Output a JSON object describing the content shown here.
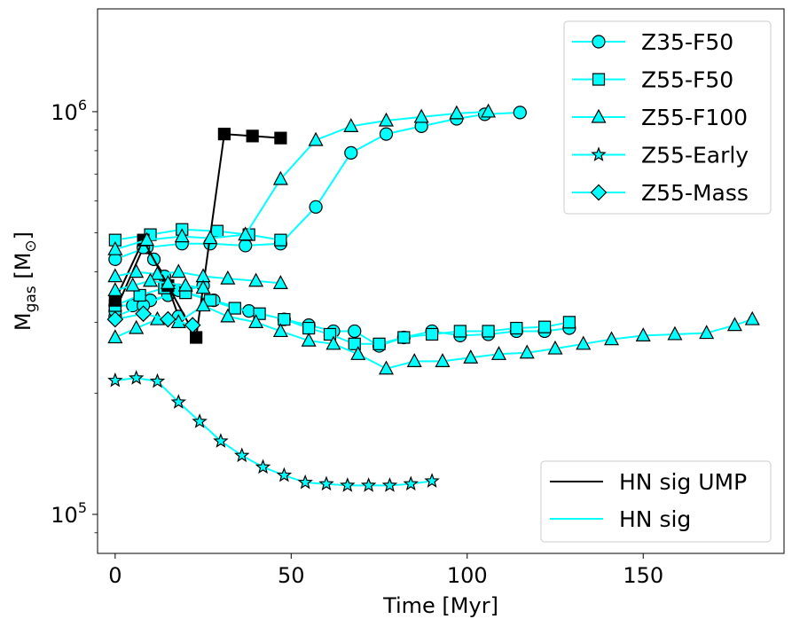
{
  "chart_data": {
    "type": "line",
    "xlabel": "Time [Myr]",
    "ylabel": "M_gas [M_sun]",
    "ylabel_main": "M",
    "ylabel_sub": "gas",
    "ylabel_unit_open": " [M",
    "ylabel_unit_sub": "⊙",
    "ylabel_unit_close": "]",
    "xlim": [
      -5,
      190
    ],
    "ylim": [
      80000,
      1800000
    ],
    "yscale": "log",
    "x_ticks": [
      {
        "value": 0,
        "label": "0"
      },
      {
        "value": 50,
        "label": "50"
      },
      {
        "value": 100,
        "label": "100"
      },
      {
        "value": 150,
        "label": "150"
      }
    ],
    "y_ticks": [
      {
        "value": 100000,
        "base": "10",
        "exp": "5"
      },
      {
        "value": 1000000,
        "base": "10",
        "exp": "6"
      }
    ],
    "marker_legend": [
      {
        "label": "Z35-F50",
        "marker": "circle"
      },
      {
        "label": "Z55-F50",
        "marker": "square"
      },
      {
        "label": "Z55-F100",
        "marker": "triangle"
      },
      {
        "label": "Z55-Early",
        "marker": "star"
      },
      {
        "label": "Z55-Mass",
        "marker": "diamond"
      }
    ],
    "line_legend": [
      {
        "label": "HN sig UMP",
        "color": "#000000"
      },
      {
        "label": "HN sig",
        "color": "#00ffff"
      }
    ],
    "series": [
      {
        "name": "Z35-F50 HN sig (a)",
        "marker": "circle",
        "color": "#00ffff",
        "face": "#00ffff",
        "x": [
          0,
          9,
          19,
          27,
          37,
          47,
          57,
          67,
          77,
          87,
          97,
          105,
          115
        ],
        "y": [
          430000,
          460000,
          470000,
          470000,
          465000,
          470000,
          580000,
          790000,
          880000,
          920000,
          960000,
          985000,
          995000
        ]
      },
      {
        "name": "Z35-F50 HN sig (b)",
        "marker": "circle",
        "color": "#00ffff",
        "face": "#00ffff",
        "x": [
          0,
          5,
          10,
          15,
          20,
          25
        ],
        "y": [
          330000,
          330000,
          340000,
          350000,
          360000,
          370000
        ]
      },
      {
        "name": "Z35-F50 HN sig (c)",
        "marker": "circle",
        "color": "#00ffff",
        "face": "#00ffff",
        "x": [
          0,
          8,
          18,
          28,
          38,
          48,
          55,
          62,
          68,
          75,
          82,
          90,
          98,
          106,
          114,
          122,
          129
        ],
        "y": [
          310000,
          330000,
          360000,
          340000,
          320000,
          305000,
          295000,
          285000,
          285000,
          262000,
          275000,
          285000,
          278000,
          280000,
          285000,
          285000,
          290000
        ]
      },
      {
        "name": "Z35-F50 HN sig UMP",
        "marker": "circle",
        "color": "#000000",
        "face": "#00ffff",
        "x": [
          0,
          8,
          11,
          14,
          18
        ],
        "y": [
          320000,
          460000,
          430000,
          390000,
          310000
        ]
      },
      {
        "name": "Z55-F50 HN sig (a)",
        "marker": "square",
        "color": "#00ffff",
        "face": "#00ffff",
        "x": [
          0,
          10,
          19,
          29,
          38,
          47
        ],
        "y": [
          480000,
          495000,
          510000,
          505000,
          495000,
          480000
        ]
      },
      {
        "name": "Z55-F50 HN sig (b)",
        "marker": "square",
        "color": "#00ffff",
        "face": "#00ffff",
        "x": [
          0,
          7,
          14,
          20,
          27,
          34,
          41,
          48,
          55,
          61,
          68,
          75,
          82,
          90,
          98,
          106,
          114,
          122,
          129
        ],
        "y": [
          330000,
          350000,
          365000,
          355000,
          340000,
          325000,
          315000,
          305000,
          290000,
          280000,
          265000,
          265000,
          275000,
          280000,
          285000,
          285000,
          290000,
          292000,
          300000
        ]
      },
      {
        "name": "Z55-F50 HN sig UMP",
        "marker": "square",
        "color": "#000000",
        "face": "#000000",
        "x": [
          0,
          8,
          15,
          23,
          31,
          39,
          47
        ],
        "y": [
          340000,
          480000,
          370000,
          275000,
          880000,
          870000,
          860000
        ]
      },
      {
        "name": "Z55-F100 HN sig (a)",
        "marker": "triangle",
        "color": "#00ffff",
        "face": "#00ffff",
        "x": [
          0,
          9,
          19,
          27,
          37,
          47,
          57,
          67,
          77,
          87,
          97,
          106
        ],
        "y": [
          455000,
          480000,
          490000,
          485000,
          495000,
          680000,
          850000,
          920000,
          950000,
          970000,
          990000,
          1000000
        ]
      },
      {
        "name": "Z55-F100 HN sig (b)",
        "marker": "triangle",
        "color": "#00ffff",
        "face": "#00ffff",
        "x": [
          0,
          6,
          12,
          18,
          25,
          32,
          40,
          47
        ],
        "y": [
          390000,
          400000,
          395000,
          400000,
          390000,
          385000,
          380000,
          375000
        ]
      },
      {
        "name": "Z55-F100 HN sig (c)",
        "marker": "triangle",
        "color": "#00ffff",
        "face": "#00ffff",
        "x": [
          0,
          6,
          12,
          18,
          25,
          32,
          40,
          47,
          55,
          62,
          69,
          77,
          85,
          93,
          101,
          109,
          117,
          125,
          133,
          141,
          150,
          159,
          168,
          176,
          181
        ],
        "y": [
          275000,
          290000,
          305000,
          300000,
          330000,
          310000,
          300000,
          285000,
          270000,
          265000,
          250000,
          230000,
          240000,
          240000,
          245000,
          250000,
          252000,
          258000,
          265000,
          272000,
          278000,
          280000,
          282000,
          295000,
          305000
        ]
      },
      {
        "name": "Z55-F100 HN sig (d)",
        "marker": "triangle",
        "color": "#00ffff",
        "face": "#00ffff",
        "x": [
          0,
          5,
          10,
          15,
          20,
          25
        ],
        "y": [
          360000,
          370000,
          380000,
          375000,
          370000,
          365000
        ]
      },
      {
        "name": "Z55-Early HN sig",
        "marker": "star",
        "color": "#00ffff",
        "face": "#00ffff",
        "x": [
          0,
          6,
          12,
          18,
          24,
          30,
          36,
          42,
          48,
          54,
          60,
          66,
          72,
          78,
          84,
          90
        ],
        "y": [
          215000,
          218000,
          214000,
          190000,
          170000,
          152000,
          140000,
          131000,
          125000,
          120000,
          119000,
          118000,
          118000,
          118000,
          119000,
          121000
        ]
      },
      {
        "name": "Z55-Mass HN sig",
        "marker": "diamond",
        "color": "#00ffff",
        "face": "#00ffff",
        "x": [
          0,
          8,
          15,
          22
        ],
        "y": [
          305000,
          315000,
          305000,
          295000
        ]
      }
    ]
  }
}
